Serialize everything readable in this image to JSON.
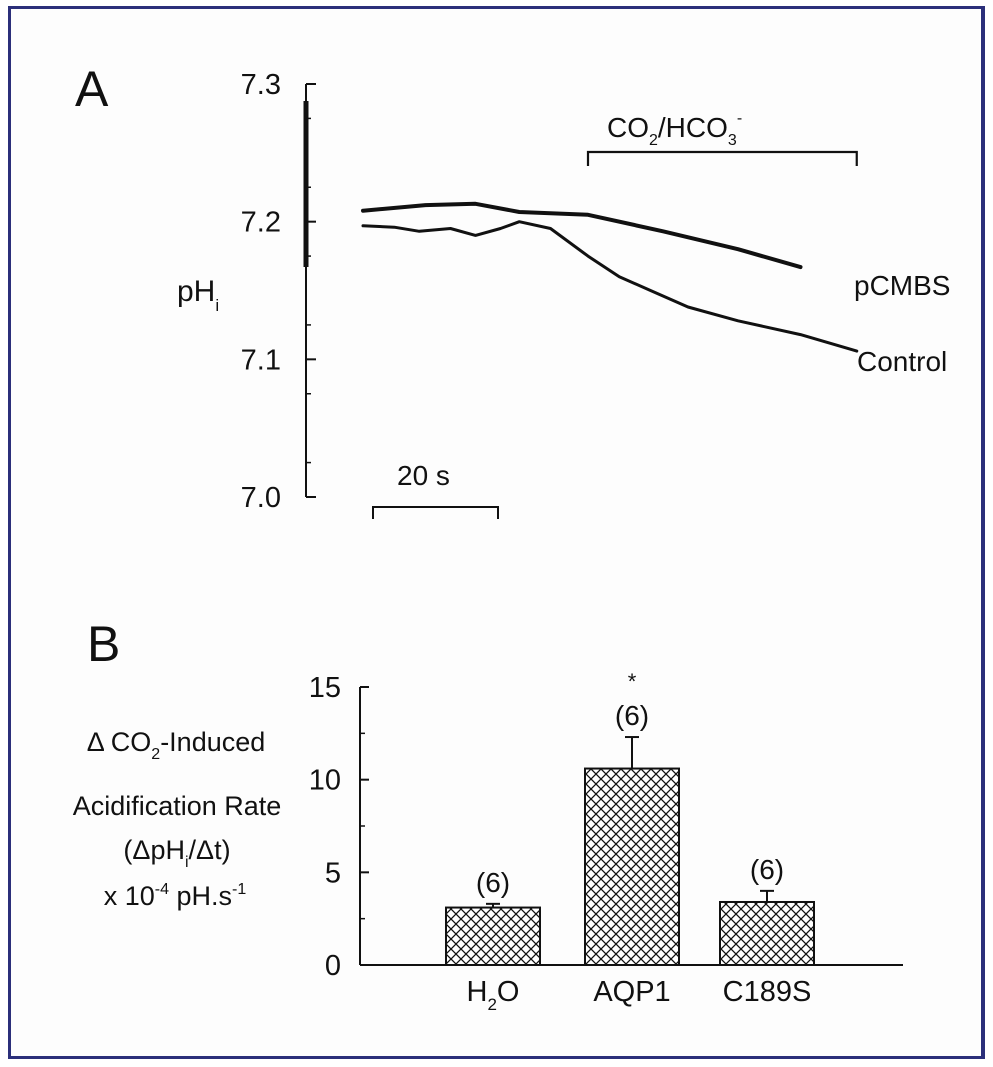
{
  "chart_data": [
    {
      "type": "line",
      "panel_label": "A",
      "ylabel": "pH",
      "ylabel_subscript": "i",
      "y_ticks": [
        "7.3",
        "7.2",
        "7.1",
        "7.0"
      ],
      "ylim": [
        7.0,
        7.3
      ],
      "x_unit": "s",
      "scale_bar": {
        "label": "20 s",
        "seconds": 20
      },
      "treatment_bar": {
        "label": "CO",
        "sub1": "2",
        "mid": "/HCO",
        "sub2": "3",
        "sup": "-",
        "start_s": 36,
        "end_s": 79
      },
      "series": [
        {
          "name": "pCMBS",
          "x": [
            0,
            10,
            18,
            25,
            36,
            48,
            60,
            70
          ],
          "y": [
            7.208,
            7.212,
            7.213,
            7.207,
            7.205,
            7.193,
            7.18,
            7.167
          ]
        },
        {
          "name": "Control",
          "x": [
            0,
            5,
            9,
            14,
            18,
            22,
            25,
            30,
            36,
            41,
            46,
            52,
            60,
            70,
            79
          ],
          "y": [
            7.197,
            7.196,
            7.193,
            7.195,
            7.19,
            7.195,
            7.2,
            7.195,
            7.175,
            7.16,
            7.15,
            7.138,
            7.128,
            7.118,
            7.106
          ]
        }
      ],
      "grid": false
    },
    {
      "type": "bar",
      "panel_label": "B",
      "ylabel_lines": {
        "l1_pre": "Δ CO",
        "l1_sub": "2",
        "l1_post": "-Induced",
        "l2": "Acidification Rate",
        "l3_pre": "(ΔpH",
        "l3_sub": "i",
        "l3_post": "/Δt)",
        "l4_pre": "x 10",
        "l4_sup1": "-4",
        "l4_mid": " pH.s",
        "l4_sup2": "-1"
      },
      "categories": [
        {
          "pre": "H",
          "sub": "2",
          "post": "O"
        },
        {
          "pre": "AQP1",
          "sub": "",
          "post": ""
        },
        {
          "pre": "C189S",
          "sub": "",
          "post": ""
        }
      ],
      "values": [
        3.1,
        10.6,
        3.4
      ],
      "errors": [
        0.2,
        1.7,
        0.6
      ],
      "n_labels": [
        "(6)",
        "(6)",
        "(6)"
      ],
      "significance": [
        "",
        "*",
        ""
      ],
      "y_ticks": [
        "15",
        "10",
        "5",
        "0"
      ],
      "ylim": [
        0,
        15
      ],
      "bar_pattern": "crosshatch",
      "grid": false
    }
  ],
  "colors": {
    "frame": "#2b2f7a",
    "ink": "#111111"
  }
}
